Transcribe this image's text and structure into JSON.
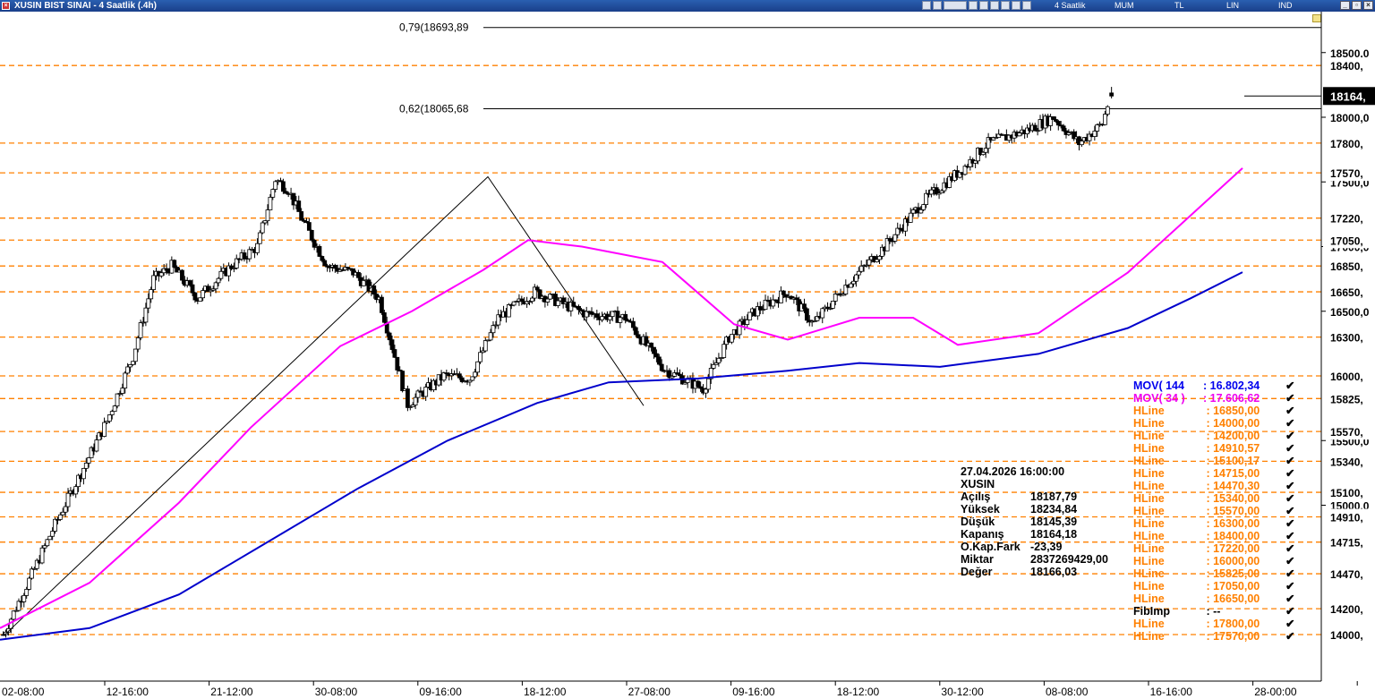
{
  "window": {
    "title": "XUSIN BIST SINAI - 4 Saatlik (.4h)",
    "toolbar": {
      "period": "4 Saatlik",
      "type": "MUM",
      "currency": "TL",
      "scale": "LIN",
      "ind": "IND"
    }
  },
  "fib_levels": [
    {
      "label": "0,79(18693,89",
      "value": 18693.89
    },
    {
      "label": "0,62(18065,68",
      "value": 18065.68
    }
  ],
  "price_axis": {
    "ticks": [
      "18500,0",
      "18000,0",
      "17500,0",
      "17000,0",
      "16500,0",
      "15500,0",
      "15000,0"
    ],
    "last_price_label": "18164,",
    "hline_labels": [
      "18400,",
      "17800,",
      "17570,",
      "17220,",
      "17050,",
      "16850,",
      "16650,",
      "16300,",
      "16000,",
      "15825,",
      "15570,",
      "15340,",
      "15100,",
      "14910,",
      "14715,",
      "14470,",
      "14200,",
      "14000,"
    ]
  },
  "time_axis": {
    "labels": [
      "02-08:00",
      "12-16:00",
      "21-12:00",
      "30-08:00",
      "09-16:00",
      "18-12:00",
      "27-08:00",
      "09-16:00",
      "18-12:00",
      "30-12:00",
      "08-08:00",
      "16-16:00",
      "28-00:00"
    ]
  },
  "info_box": {
    "datetime": "27.04.2026  16:00:00",
    "symbol": "XUSIN",
    "rows": [
      {
        "k": "Açılış",
        "v": "18187,79"
      },
      {
        "k": "Yüksek",
        "v": "18234,84"
      },
      {
        "k": "Düşük",
        "v": "18145,39"
      },
      {
        "k": "Kapanış",
        "v": "18164,18"
      },
      {
        "k": "O.Kap.Fark",
        "v": "-23,39"
      },
      {
        "k": "Miktar",
        "v": "2837269429,00"
      },
      {
        "k": "Değer",
        "v": "18166,03"
      }
    ]
  },
  "legend": [
    {
      "name": "MOV( 144",
      "value": ": 16.802,34",
      "color": "#0000ee"
    },
    {
      "name": "MOV( 34 )",
      "value": ": 17.606,62",
      "color": "#ee00ee"
    },
    {
      "name": "HLine",
      "value": " : 16850,00",
      "color": "#ff8000"
    },
    {
      "name": "HLine",
      "value": " : 14000,00",
      "color": "#ff8000"
    },
    {
      "name": "HLine",
      "value": " : 14200,00",
      "color": "#ff8000"
    },
    {
      "name": "HLine",
      "value": " : 14910,57",
      "color": "#ff8000"
    },
    {
      "name": "HLine",
      "value": " : 15100,17",
      "color": "#ff8000"
    },
    {
      "name": "HLine",
      "value": " : 14715,00",
      "color": "#ff8000"
    },
    {
      "name": "HLine",
      "value": " : 14470,30",
      "color": "#ff8000"
    },
    {
      "name": "HLine",
      "value": " : 15340,00",
      "color": "#ff8000"
    },
    {
      "name": "HLine",
      "value": " : 15570,00",
      "color": "#ff8000"
    },
    {
      "name": "HLine",
      "value": " : 16300,00",
      "color": "#ff8000"
    },
    {
      "name": "HLine",
      "value": " : 18400,00",
      "color": "#ff8000"
    },
    {
      "name": "HLine",
      "value": " : 17220,00",
      "color": "#ff8000"
    },
    {
      "name": "HLine",
      "value": " : 16000,00",
      "color": "#ff8000"
    },
    {
      "name": "HLine",
      "value": " : 15825,00",
      "color": "#ff8000"
    },
    {
      "name": "HLine",
      "value": " : 17050,00",
      "color": "#ff8000"
    },
    {
      "name": "HLine",
      "value": " : 16650,00",
      "color": "#ff8000"
    },
    {
      "name": "FibImp",
      "value": " : --",
      "color": "#000000"
    },
    {
      "name": "HLine",
      "value": " : 17800,00",
      "color": "#ff8000"
    },
    {
      "name": "HLine",
      "value": " : 17570,00",
      "color": "#ff8000"
    }
  ],
  "chart_data": {
    "type": "candlestick",
    "symbol": "XUSIN",
    "timeframe": "4 Saatlik",
    "colors": {
      "hline": "#ff8000",
      "mov144": "#0000cc",
      "mov34": "#ff00ff",
      "candle_up": "#ffffff",
      "candle_down": "#000000"
    },
    "hlines": [
      18400,
      17800,
      17570,
      17220,
      17050,
      16850,
      16650,
      16300,
      16000,
      15825,
      15570,
      15340,
      15100,
      14910,
      14715,
      14470,
      14200,
      14000
    ],
    "fib_lines": [
      18693.89,
      18065.68
    ],
    "last_price": 18164.18,
    "anchors": [
      [
        0,
        14000
      ],
      [
        20,
        14420
      ],
      [
        40,
        14850
      ],
      [
        60,
        15250
      ],
      [
        80,
        15650
      ],
      [
        100,
        16150
      ],
      [
        116,
        16750
      ],
      [
        130,
        16850
      ],
      [
        150,
        16600
      ],
      [
        176,
        16850
      ],
      [
        196,
        17000
      ],
      [
        210,
        17520
      ],
      [
        220,
        17440
      ],
      [
        230,
        17220
      ],
      [
        250,
        16850
      ],
      [
        270,
        16800
      ],
      [
        290,
        16600
      ],
      [
        312,
        15780
      ],
      [
        340,
        16000
      ],
      [
        360,
        15980
      ],
      [
        382,
        16450
      ],
      [
        410,
        16650
      ],
      [
        450,
        16480
      ],
      [
        480,
        16450
      ],
      [
        510,
        16050
      ],
      [
        540,
        15900
      ],
      [
        560,
        16300
      ],
      [
        580,
        16500
      ],
      [
        605,
        16650
      ],
      [
        625,
        16400
      ],
      [
        650,
        16700
      ],
      [
        680,
        17000
      ],
      [
        710,
        17350
      ],
      [
        740,
        17600
      ],
      [
        760,
        17800
      ],
      [
        790,
        17900
      ],
      [
        810,
        18000
      ],
      [
        830,
        17800
      ],
      [
        848,
        17950
      ],
      [
        854,
        18164
      ]
    ],
    "mov34": [
      [
        0,
        14050
      ],
      [
        100,
        14400
      ],
      [
        200,
        15020
      ],
      [
        280,
        15600
      ],
      [
        380,
        16230
      ],
      [
        460,
        16500
      ],
      [
        540,
        16820
      ],
      [
        590,
        17050
      ],
      [
        650,
        17000
      ],
      [
        740,
        16880
      ],
      [
        820,
        16400
      ],
      [
        880,
        16280
      ],
      [
        960,
        16450
      ],
      [
        1020,
        16450
      ],
      [
        1070,
        16240
      ],
      [
        1160,
        16330
      ],
      [
        1260,
        16800
      ],
      [
        1330,
        17240
      ],
      [
        1388,
        17606
      ]
    ],
    "mov144": [
      [
        0,
        13960
      ],
      [
        100,
        14050
      ],
      [
        200,
        14310
      ],
      [
        300,
        14720
      ],
      [
        400,
        15130
      ],
      [
        500,
        15500
      ],
      [
        600,
        15790
      ],
      [
        680,
        15950
      ],
      [
        780,
        15980
      ],
      [
        880,
        16040
      ],
      [
        960,
        16100
      ],
      [
        1050,
        16070
      ],
      [
        1160,
        16170
      ],
      [
        1260,
        16370
      ],
      [
        1330,
        16600
      ],
      [
        1388,
        16802
      ]
    ]
  }
}
